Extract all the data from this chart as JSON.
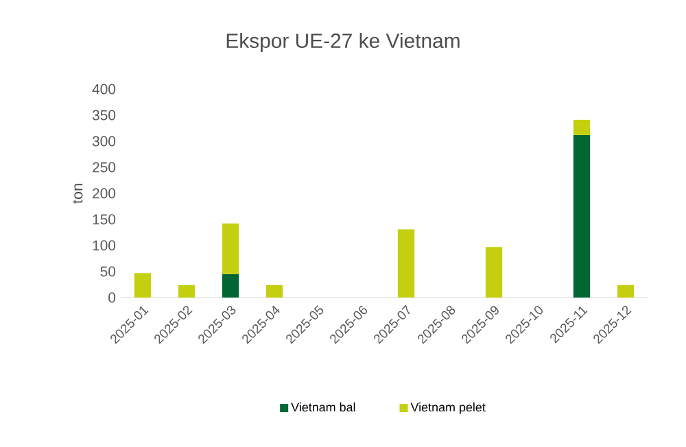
{
  "chart_data": {
    "type": "bar",
    "title": "Ekspor UE-27 ke Vietnam",
    "ylabel": "ton",
    "stacked": true,
    "categories": [
      "2025-01",
      "2025-02",
      "2025-03",
      "2025-04",
      "2025-05",
      "2025-06",
      "2025-07",
      "2025-08",
      "2025-09",
      "2025-10",
      "2025-11",
      "2025-12"
    ],
    "series": [
      {
        "name": "Vietnam bal",
        "color": "#006633",
        "values": [
          null,
          null,
          45,
          null,
          null,
          null,
          null,
          null,
          null,
          null,
          312,
          null
        ]
      },
      {
        "name": "Vietnam pelet",
        "color": "#c4d00f",
        "values": [
          47,
          24,
          97,
          24,
          null,
          null,
          131,
          null,
          97,
          null,
          29,
          24
        ]
      }
    ],
    "ylim": [
      0,
      400
    ],
    "yticks": [
      0,
      50,
      100,
      150,
      200,
      250,
      300,
      350,
      400
    ],
    "grid": false,
    "legend": "bottom"
  }
}
